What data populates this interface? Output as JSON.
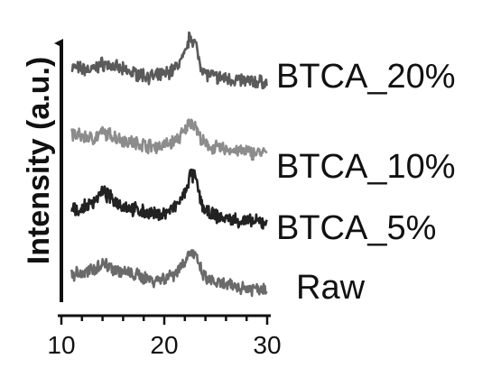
{
  "chart_data": {
    "type": "line",
    "title": "",
    "xlabel": "",
    "ylabel": "Intensity (a.u.)",
    "xlim": [
      10,
      30
    ],
    "x_ticks": [
      10,
      20,
      30
    ],
    "x_tick_labels": [
      "10",
      "20",
      "30"
    ],
    "y_ticks_shown": false,
    "grid": false,
    "legend": "none",
    "series": [
      {
        "name": "BTCA_20%",
        "color": "#5a5a5a",
        "x": [
          11,
          12,
          13,
          14,
          15,
          16,
          17,
          18,
          19,
          20,
          21,
          22,
          22.5,
          23,
          23.5,
          24,
          25,
          26,
          27,
          28,
          29,
          30
        ],
        "values": [
          0.45,
          0.42,
          0.4,
          0.5,
          0.46,
          0.4,
          0.36,
          0.33,
          0.3,
          0.34,
          0.42,
          0.62,
          0.92,
          0.8,
          0.5,
          0.35,
          0.3,
          0.28,
          0.26,
          0.24,
          0.23,
          0.22
        ]
      },
      {
        "name": "BTCA_10%",
        "color": "#8c8c8c",
        "x": [
          11,
          12,
          13,
          14,
          15,
          16,
          17,
          18,
          19,
          20,
          21,
          22,
          22.5,
          23,
          23.5,
          24,
          25,
          26,
          27,
          28,
          29,
          30
        ],
        "values": [
          0.48,
          0.45,
          0.42,
          0.5,
          0.46,
          0.4,
          0.36,
          0.33,
          0.3,
          0.32,
          0.38,
          0.52,
          0.68,
          0.62,
          0.42,
          0.32,
          0.28,
          0.26,
          0.24,
          0.22,
          0.21,
          0.2
        ]
      },
      {
        "name": "BTCA_5%",
        "color": "#222222",
        "x": [
          11,
          12,
          13,
          14,
          15,
          16,
          17,
          18,
          19,
          20,
          21,
          22,
          22.5,
          23,
          23.5,
          24,
          25,
          26,
          27,
          28,
          29,
          30
        ],
        "values": [
          0.38,
          0.4,
          0.5,
          0.66,
          0.54,
          0.46,
          0.4,
          0.36,
          0.32,
          0.34,
          0.42,
          0.62,
          0.9,
          0.88,
          0.55,
          0.36,
          0.3,
          0.26,
          0.24,
          0.22,
          0.21,
          0.2
        ]
      },
      {
        "name": "Raw",
        "color": "#6a6a6a",
        "x": [
          11,
          12,
          13,
          14,
          15,
          16,
          17,
          18,
          19,
          20,
          21,
          22,
          22.5,
          23,
          23.5,
          24,
          25,
          26,
          27,
          28,
          29,
          30
        ],
        "values": [
          0.4,
          0.38,
          0.45,
          0.55,
          0.48,
          0.42,
          0.38,
          0.34,
          0.3,
          0.33,
          0.4,
          0.58,
          0.72,
          0.66,
          0.46,
          0.32,
          0.26,
          0.22,
          0.2,
          0.18,
          0.18,
          0.17
        ]
      }
    ]
  }
}
